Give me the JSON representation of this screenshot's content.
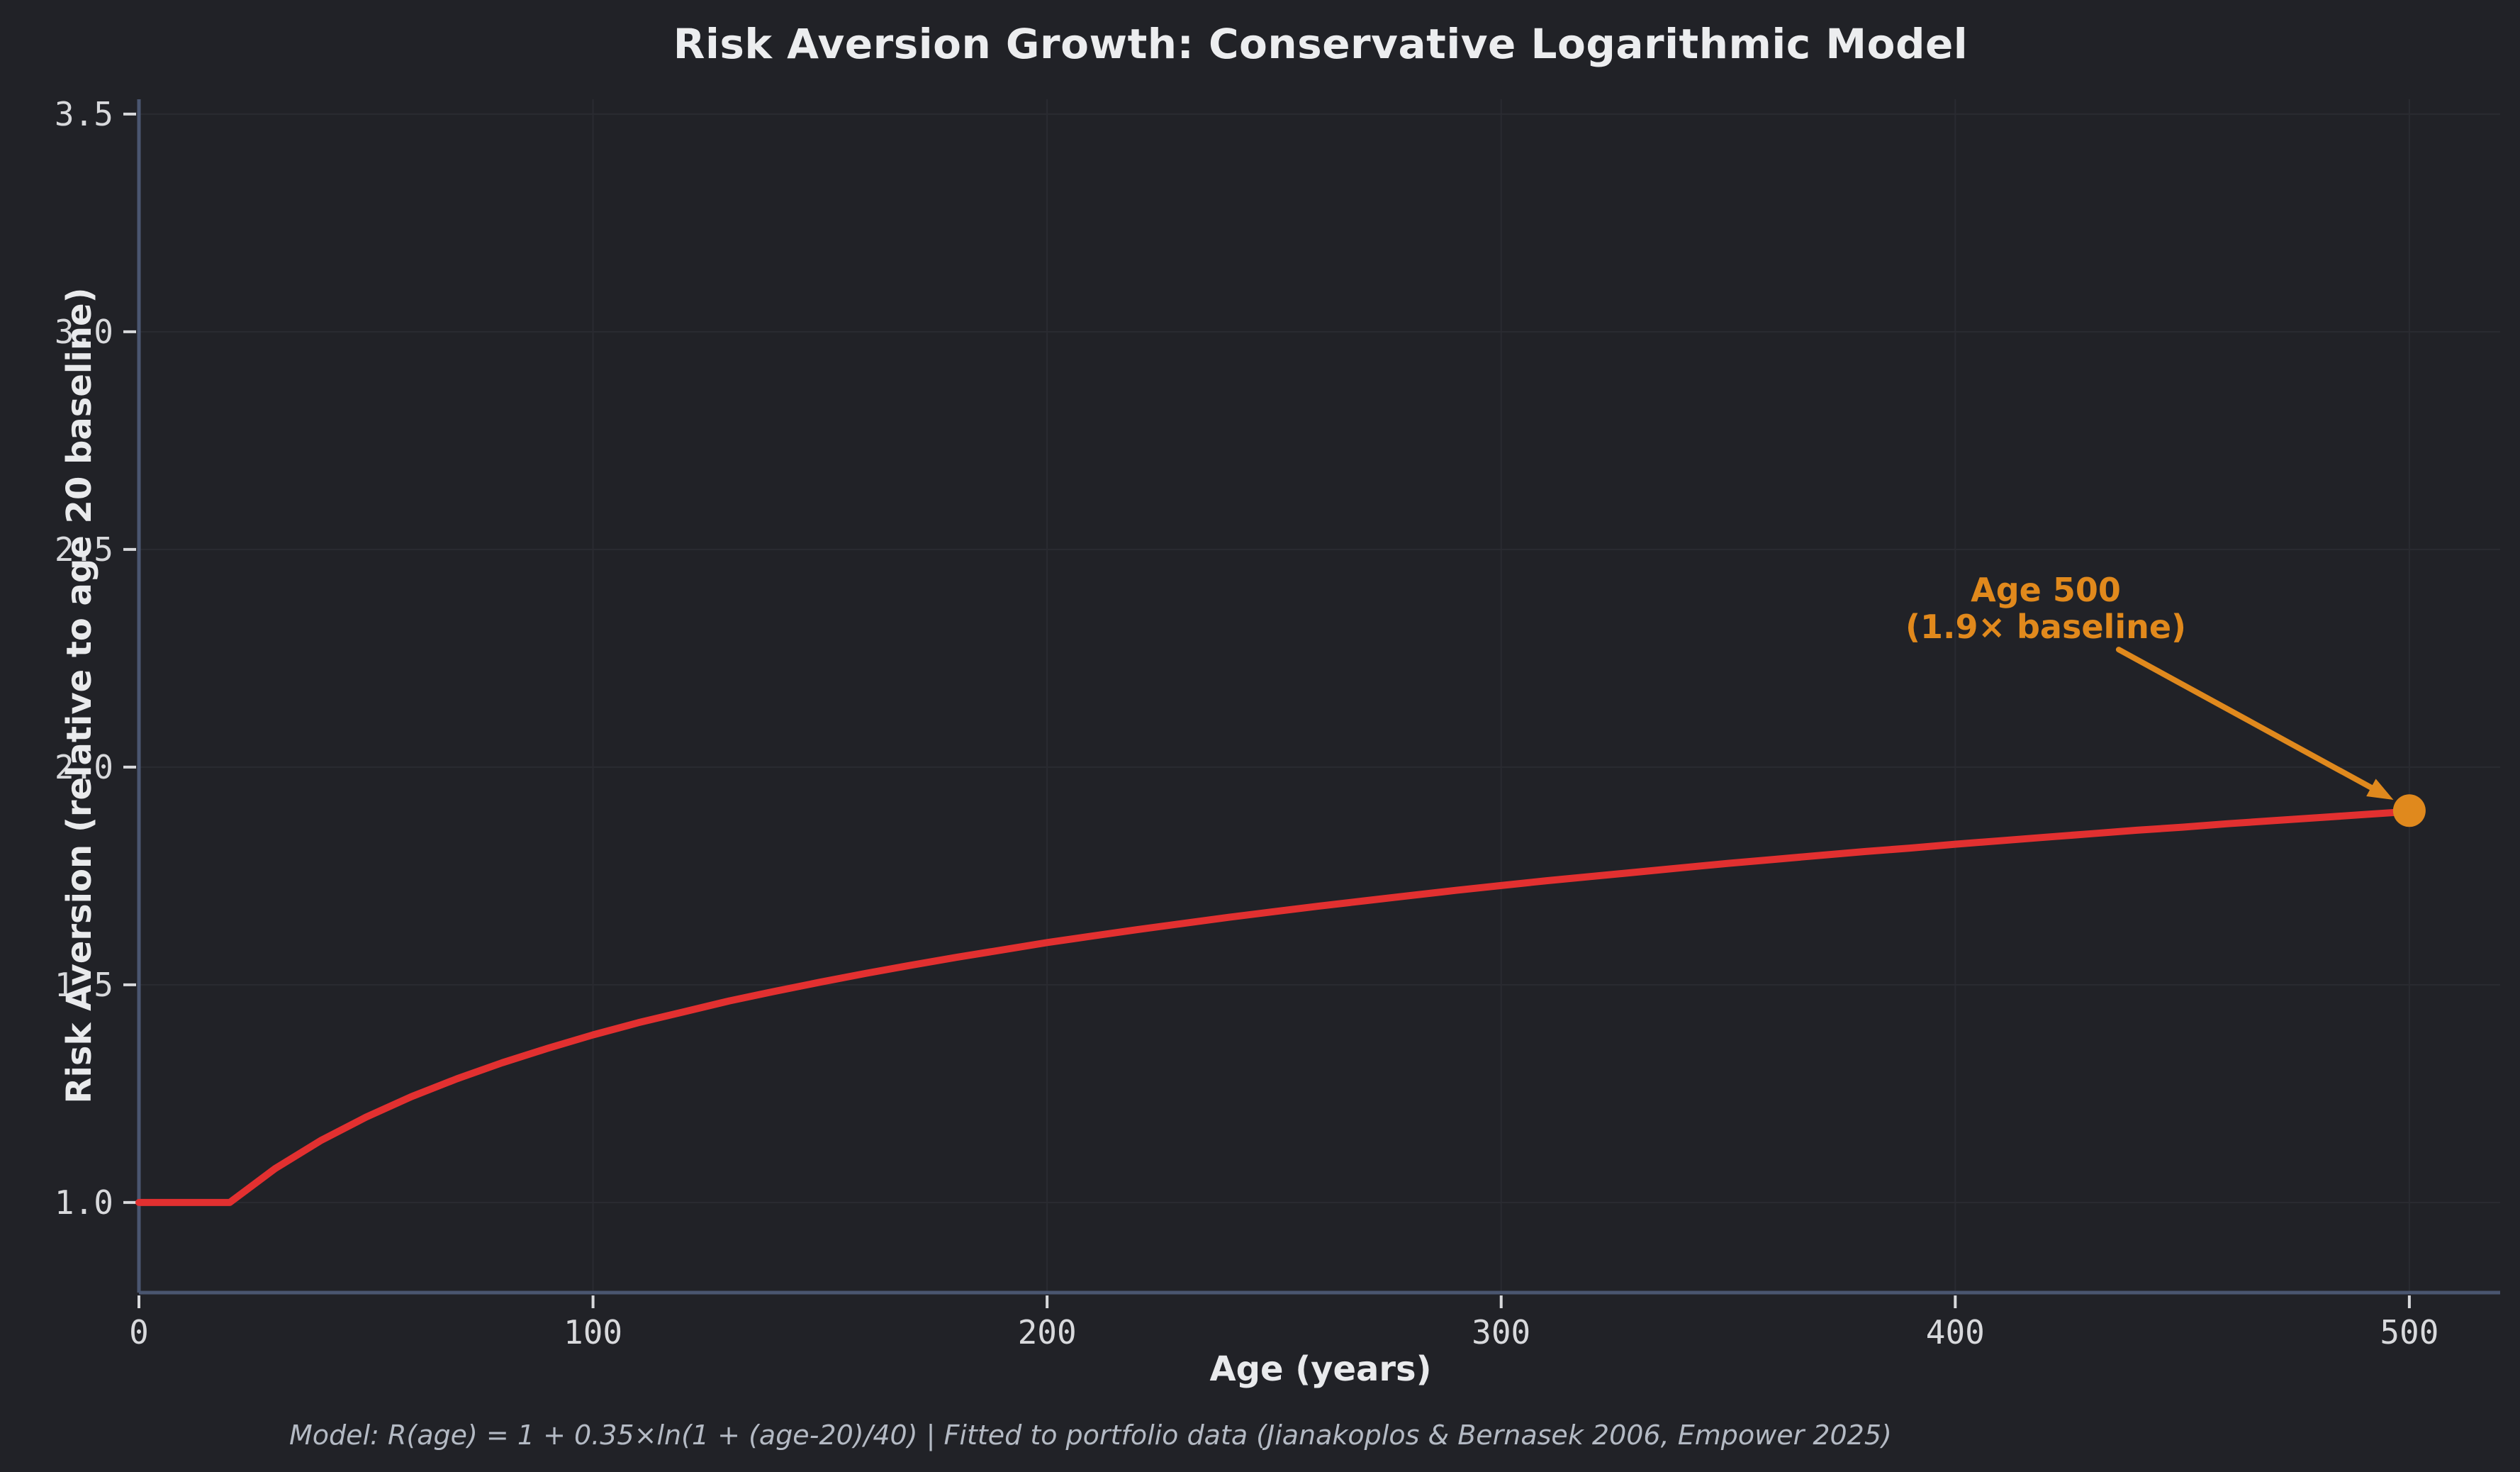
{
  "colors": {
    "background": "#212227",
    "grid": "#2a2b31",
    "spine": "#4a5670",
    "tick": "#d8d9dc",
    "tick_label": "#d8d9dc",
    "title": "#ecedef",
    "axis_label": "#e9eaec",
    "caption": "#b4bac4",
    "line": "#e23030",
    "accent": "#e0891d"
  },
  "chart_data": {
    "type": "line",
    "title": "Risk Aversion Growth: Conservative Logarithmic Model",
    "xlabel": "Age (years)",
    "ylabel": "Risk Aversion (relative to age 20 baseline)",
    "footnote": "Model: R(age) = 1 + 0.35×ln(1 + (age-20)/40) | Fitted to portfolio data (Jianakoplos & Bernasek 2006, Empower 2025)",
    "x": [
      0,
      10,
      20,
      30,
      40,
      50,
      60,
      70,
      80,
      90,
      100,
      110,
      120,
      130,
      140,
      150,
      160,
      170,
      180,
      190,
      200,
      210,
      220,
      230,
      240,
      250,
      260,
      270,
      280,
      290,
      300,
      310,
      320,
      330,
      340,
      350,
      360,
      370,
      380,
      390,
      400,
      410,
      420,
      430,
      440,
      450,
      460,
      470,
      480,
      490,
      500
    ],
    "y": [
      1.0,
      1.0,
      1.0,
      1.078,
      1.142,
      1.196,
      1.243,
      1.284,
      1.321,
      1.354,
      1.385,
      1.413,
      1.438,
      1.463,
      1.485,
      1.506,
      1.526,
      1.545,
      1.563,
      1.58,
      1.597,
      1.612,
      1.627,
      1.641,
      1.655,
      1.668,
      1.681,
      1.693,
      1.705,
      1.717,
      1.728,
      1.739,
      1.749,
      1.759,
      1.769,
      1.779,
      1.788,
      1.797,
      1.806,
      1.814,
      1.823,
      1.831,
      1.839,
      1.847,
      1.855,
      1.862,
      1.87,
      1.877,
      1.884,
      1.891,
      1.898
    ],
    "xticks": [
      0,
      100,
      200,
      300,
      400,
      500
    ],
    "yticks": [
      1.0,
      1.5,
      2.0,
      2.5,
      3.0,
      3.5
    ],
    "xlim": [
      0,
      520
    ],
    "ylim": [
      0.793,
      3.534
    ],
    "grid": true,
    "legend": false,
    "annotation": {
      "label_line1": "Age 500",
      "label_line2": "(1.9× baseline)",
      "point": {
        "x": 500,
        "y": 1.9
      },
      "arrow": {
        "from": [
          436,
          2.27
        ],
        "to": [
          496.5,
          1.925
        ]
      }
    }
  }
}
